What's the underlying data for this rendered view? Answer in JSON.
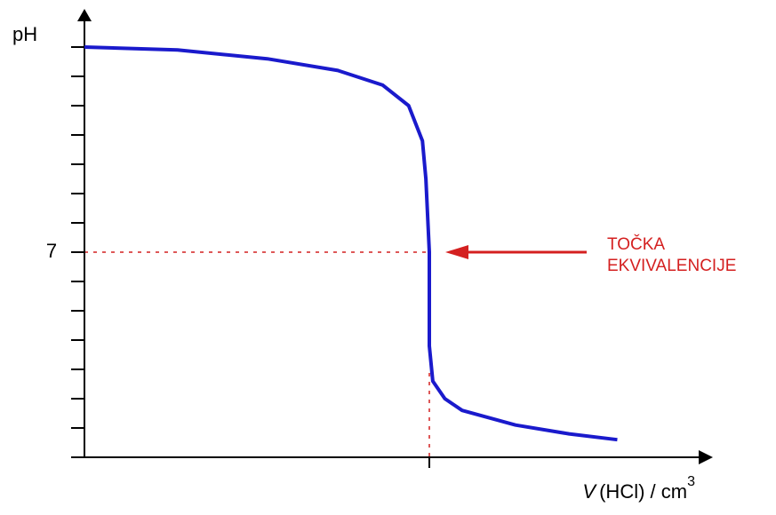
{
  "chart_data": {
    "type": "line",
    "ylabel": "pH",
    "xlabel": {
      "variable": "V",
      "text": "(HCl) / cm",
      "superscript": "3"
    },
    "x": [
      0,
      5.4,
      10.6,
      14.7,
      17.3,
      18.8,
      19.6,
      19.8,
      20,
      20,
      20.2,
      20.9,
      21.9,
      25,
      28.1,
      30.9
    ],
    "series": [
      {
        "name": "pH",
        "color": "#1a1acc",
        "values": [
          14.0,
          13.9,
          13.6,
          13.2,
          12.7,
          12.0,
          10.8,
          9.5,
          7,
          3.8,
          2.6,
          2.0,
          1.6,
          1.1,
          0.8,
          0.6
        ]
      }
    ],
    "xlim": [
      0,
      36
    ],
    "ylim": [
      0,
      15
    ],
    "yticks": [
      7
    ],
    "minor_yticks": [
      0,
      1,
      2,
      3,
      4,
      5,
      6,
      7,
      8,
      9,
      10,
      11,
      12,
      13,
      14
    ],
    "equivalence": {
      "x": 20,
      "y": 7,
      "color": "#d42020"
    },
    "annotation": [
      "TOČKA",
      "EKVIVALENCIJE"
    ]
  }
}
